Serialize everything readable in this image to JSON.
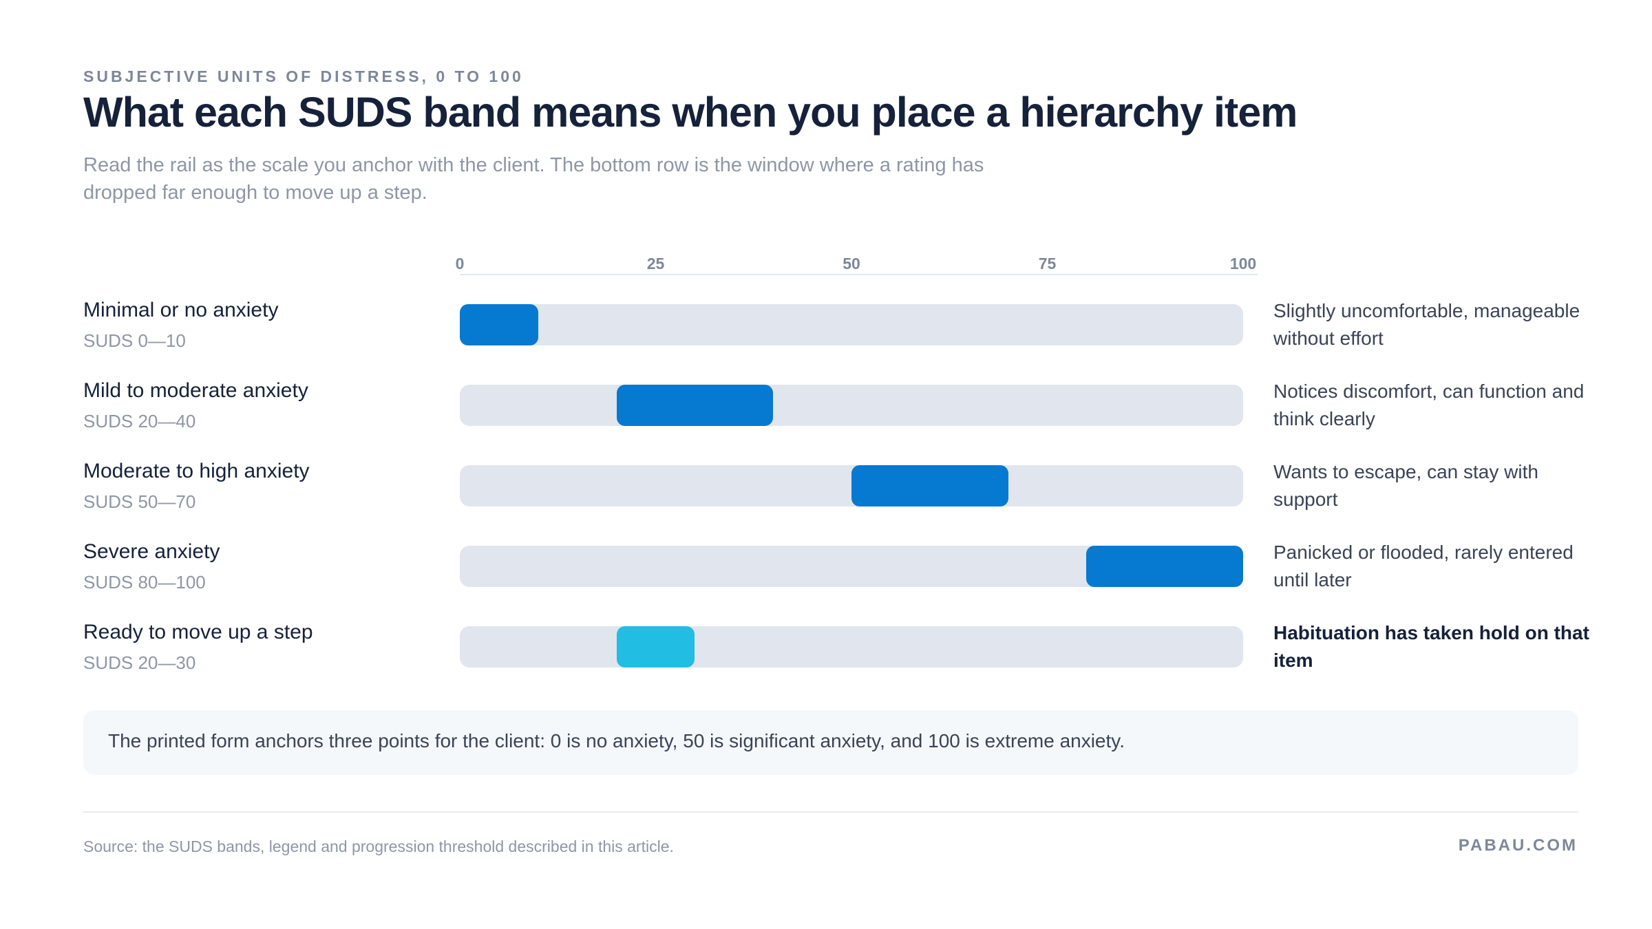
{
  "header": {
    "eyebrow": "SUBJECTIVE UNITS OF DISTRESS, 0 TO 100",
    "title": "What each SUDS band means when you place a hierarchy item",
    "subtitle": "Read the rail as the scale you anchor with the client. The bottom row is the window where a rating has dropped far enough to move up a step."
  },
  "chart_data": {
    "type": "bar",
    "subtype": "range",
    "xlim": [
      0,
      100
    ],
    "ticks": [
      "0",
      "25",
      "50",
      "75",
      "100"
    ],
    "tick_values": [
      0,
      25,
      50,
      75,
      100
    ],
    "rows": [
      {
        "label": "Minimal or no anxiety",
        "range_label": "SUDS 0—10",
        "start": 0,
        "end": 10,
        "note": "Slightly uncomfortable, manageable without effort",
        "color": "#0679d1",
        "emphasis": false
      },
      {
        "label": "Mild to moderate anxiety",
        "range_label": "SUDS 20—40",
        "start": 20,
        "end": 40,
        "note": "Notices discomfort, can function and think clearly",
        "color": "#0679d1",
        "emphasis": false
      },
      {
        "label": "Moderate to high anxiety",
        "range_label": "SUDS 50—70",
        "start": 50,
        "end": 70,
        "note": "Wants to escape, can stay with support",
        "color": "#0679d1",
        "emphasis": false
      },
      {
        "label": "Severe anxiety",
        "range_label": "SUDS 80—100",
        "start": 80,
        "end": 100,
        "note": "Panicked or flooded, rarely entered until later",
        "color": "#0679d1",
        "emphasis": false
      },
      {
        "label": "Ready to move up a step",
        "range_label": "SUDS 20—30",
        "start": 20,
        "end": 30,
        "note": "Habituation has taken hold on that item",
        "color": "#22bde2",
        "emphasis": true
      }
    ],
    "rail_color": "#e1e5ee",
    "grid": false
  },
  "footnote": "The printed form anchors three points for the client: 0 is no anxiety, 50 is significant anxiety, and 100 is extreme anxiety.",
  "footer": {
    "source": "Source: the SUDS bands, legend and progression threshold described in this article.",
    "brand": "PABAU.COM"
  }
}
